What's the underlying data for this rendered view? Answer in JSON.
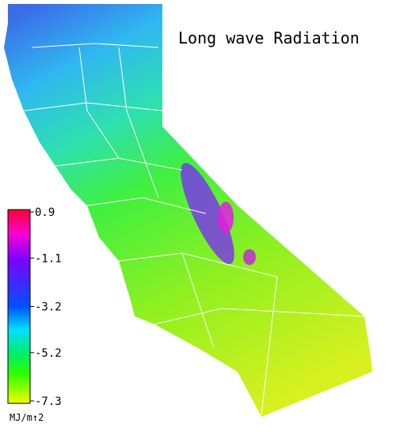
{
  "title": "Long wave Radiation",
  "colorbar": {
    "lim": [
      -7.3,
      0.9
    ],
    "ticks": [
      0.9,
      -1.1,
      -3.2,
      -5.2,
      -7.3
    ],
    "unit": "MJ/m↑2"
  }
}
